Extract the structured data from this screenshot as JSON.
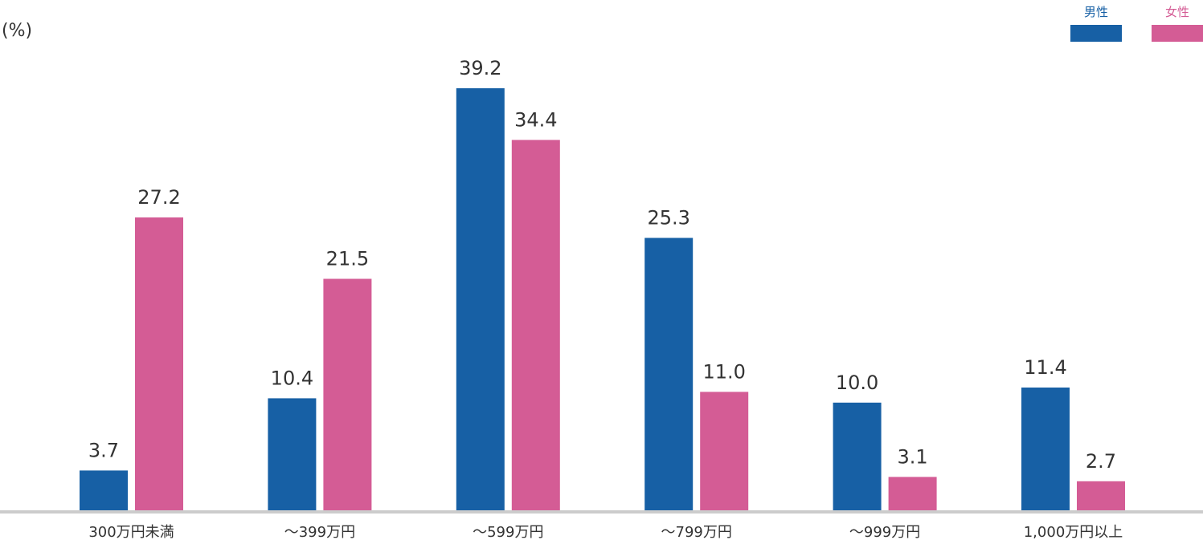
{
  "chart_data": {
    "type": "bar",
    "unit_label": "(%)",
    "categories": [
      "300万円未満",
      "～399万円",
      "～599万円",
      "～799万円",
      "～999万円",
      "1,000万円以上"
    ],
    "series": [
      {
        "name": "男性",
        "color": "#1760a5",
        "values": [
          3.7,
          10.4,
          39.2,
          25.3,
          10.0,
          11.4
        ],
        "labels": [
          "3.7",
          "10.4",
          "39.2",
          "25.3",
          "10.0",
          "11.4"
        ]
      },
      {
        "name": "女性",
        "color": "#d45c95",
        "values": [
          27.2,
          21.5,
          34.4,
          11.0,
          3.1,
          2.7
        ],
        "labels": [
          "27.2",
          "21.5",
          "34.4",
          "11.0",
          "3.1",
          "2.7"
        ]
      }
    ],
    "ylim": [
      0,
      39.2
    ],
    "grid": false,
    "legend_position": "top-right",
    "baseline_color": "#cccccc"
  }
}
